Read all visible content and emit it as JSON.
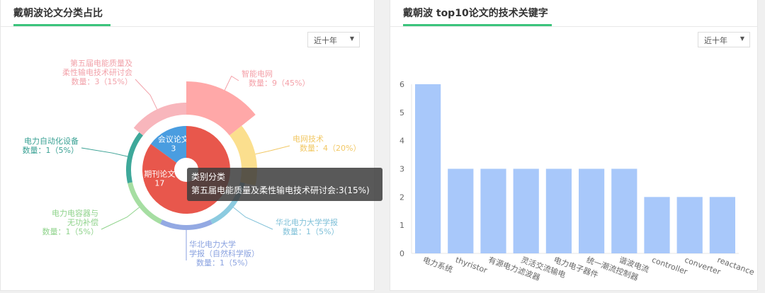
{
  "left_panel": {
    "title": "戴朝波论文分类占比",
    "dropdown": "近十年"
  },
  "right_panel": {
    "title": "戴朝波 top10论文的技术关键字",
    "dropdown": "近十年"
  },
  "tooltip": {
    "title": "类别分类",
    "text": "第五届电能质量及柔性输电技术研讨会:3(15%)"
  },
  "chart_data": [
    {
      "type": "pie",
      "inner": {
        "slices": [
          {
            "name": "会议论文",
            "value": 3,
            "color": "#4a9de0"
          },
          {
            "name": "期刊论文",
            "value": 17,
            "color": "#e8574c"
          }
        ]
      },
      "outer": {
        "rose": true,
        "count_label": "数量",
        "slices": [
          {
            "name": "智能电网",
            "value": 9,
            "pct": "45%",
            "color": "#ffa8a8",
            "label_color": "#f4a0a8"
          },
          {
            "name": "电网技术",
            "value": 4,
            "pct": "20%",
            "color": "#fbdf8e",
            "label_color": "#f2c865"
          },
          {
            "name": "华北电力大学学报",
            "value": 1,
            "pct": "5%",
            "color": "#8ccbe0",
            "label_color": "#7fc0d8"
          },
          {
            "name": "华北电力大学学报（自然科学版）",
            "value": 1,
            "pct": "5%",
            "color": "#93a9e3",
            "label_color": "#8aa2e0"
          },
          {
            "name": "电力电容器与无功补偿",
            "value": 1,
            "pct": "5%",
            "color": "#a6dea2",
            "label_color": "#8fd38b"
          },
          {
            "name": "电力自动化设备",
            "value": 1,
            "pct": "5%",
            "color": "#3ea89a",
            "label_color": "#3aa194"
          },
          {
            "name": "第五届电能质量及柔性输电技术研讨会",
            "value": 3,
            "pct": "15%",
            "color": "#f8b6bc",
            "label_color": "#f2a2aa"
          }
        ]
      }
    },
    {
      "type": "bar",
      "categories": [
        "电力系统",
        "thyristor",
        "有源电力滤波器",
        "灵活交流输电",
        "电力电子器件",
        "统一潮流控制器",
        "谐波电流",
        "controller",
        "converter",
        "reactance"
      ],
      "values": [
        6,
        3,
        3,
        3,
        3,
        3,
        3,
        2,
        2,
        2
      ],
      "ylim": [
        0,
        6
      ],
      "yticks": [
        0,
        1,
        2,
        3,
        4,
        5,
        6
      ],
      "color": "#a8c8fa"
    }
  ]
}
